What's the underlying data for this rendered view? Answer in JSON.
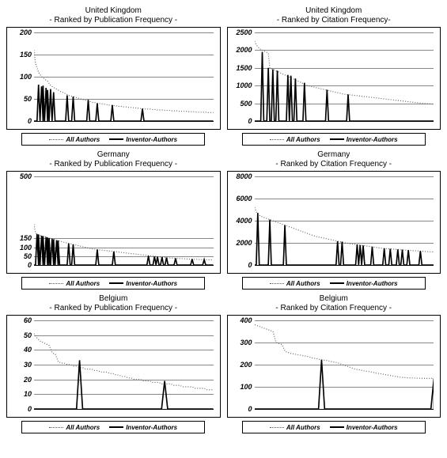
{
  "legend": {
    "a": "All Authors",
    "b": "Inventor-Authors"
  },
  "style": {
    "dotted_color": "#666666",
    "dotted_dash": "1,2",
    "dotted_width": 1.2,
    "solid_color": "#000000",
    "solid_width": 1.6,
    "grid_color": "#888888",
    "axis_color": "#000000",
    "title_fontsize": 10,
    "tick_fontsize": 9,
    "legend_fontsize": 8,
    "background": "#ffffff"
  },
  "panels": [
    {
      "country": "United Kingdom",
      "subtitle": "- Ranked by Publication Frequency -",
      "ymax": 200,
      "yticks": [
        0,
        50,
        100,
        150,
        200
      ],
      "n": 120,
      "all": [
        160,
        130,
        120,
        110,
        105,
        100,
        98,
        95,
        92,
        90,
        85,
        80,
        78,
        76,
        74,
        72,
        70,
        68,
        66,
        65,
        63,
        62,
        60,
        58,
        57,
        56,
        55,
        54,
        53,
        52,
        51,
        50,
        49,
        48,
        47,
        46,
        45,
        44,
        43,
        42,
        42,
        41,
        40,
        40,
        39,
        39,
        38,
        38,
        37,
        37,
        36,
        36,
        35,
        35,
        34,
        34,
        33,
        33,
        33,
        32,
        32,
        32,
        31,
        31,
        31,
        30,
        30,
        30,
        29,
        29,
        29,
        28,
        28,
        28,
        27,
        27,
        27,
        27,
        26,
        26,
        26,
        26,
        25,
        25,
        25,
        25,
        24,
        24,
        24,
        24,
        24,
        23,
        23,
        23,
        23,
        23,
        22,
        22,
        22,
        22,
        22,
        22,
        21,
        21,
        21,
        21,
        21,
        21,
        20,
        20,
        20,
        20,
        20,
        20,
        20,
        19,
        19,
        19,
        19,
        19
      ],
      "spikes": [
        [
          3,
          82
        ],
        [
          5,
          78
        ],
        [
          6,
          80
        ],
        [
          8,
          75
        ],
        [
          9,
          70
        ],
        [
          11,
          72
        ],
        [
          13,
          65
        ],
        [
          22,
          58
        ],
        [
          26,
          55
        ],
        [
          36,
          48
        ],
        [
          42,
          40
        ],
        [
          52,
          36
        ],
        [
          72,
          28
        ]
      ]
    },
    {
      "country": "United Kingdom",
      "subtitle": "- Ranked by Citation Frequency-",
      "ymax": 2500,
      "yticks": [
        0,
        500,
        1000,
        1500,
        2000,
        2500
      ],
      "n": 120,
      "all": [
        2250,
        2150,
        2100,
        2050,
        2020,
        2000,
        1980,
        1960,
        1940,
        1920,
        1500,
        1480,
        1460,
        1440,
        1420,
        1400,
        1380,
        1360,
        1340,
        1320,
        1300,
        1280,
        1260,
        1240,
        1220,
        1200,
        1180,
        1160,
        1140,
        1120,
        1100,
        1080,
        1060,
        1040,
        1020,
        1000,
        990,
        980,
        970,
        960,
        950,
        940,
        930,
        920,
        910,
        900,
        890,
        880,
        870,
        860,
        850,
        840,
        830,
        820,
        810,
        800,
        790,
        780,
        770,
        760,
        755,
        750,
        745,
        740,
        735,
        730,
        725,
        720,
        715,
        710,
        705,
        700,
        695,
        690,
        685,
        680,
        675,
        670,
        665,
        660,
        655,
        650,
        645,
        640,
        635,
        630,
        625,
        620,
        615,
        610,
        605,
        600,
        595,
        590,
        585,
        580,
        575,
        570,
        565,
        560,
        555,
        550,
        545,
        540,
        535,
        530,
        525,
        520,
        515,
        510,
        505,
        500,
        498,
        495,
        490,
        488,
        485,
        482,
        480,
        478,
        475
      ],
      "spikes": [
        [
          5,
          1950
        ],
        [
          9,
          1500
        ],
        [
          12,
          1460
        ],
        [
          15,
          1420
        ],
        [
          22,
          1300
        ],
        [
          24,
          1280
        ],
        [
          27,
          1200
        ],
        [
          33,
          1080
        ],
        [
          48,
          880
        ],
        [
          62,
          750
        ]
      ]
    },
    {
      "country": "Germany",
      "subtitle": "- Ranked by Publication Frequency -",
      "ymax": 500,
      "yticks": [
        0,
        50,
        100,
        150,
        500
      ],
      "n": 120,
      "all": [
        230,
        180,
        175,
        170,
        168,
        165,
        162,
        160,
        158,
        155,
        152,
        150,
        148,
        145,
        143,
        140,
        138,
        135,
        133,
        130,
        128,
        126,
        124,
        122,
        120,
        118,
        116,
        114,
        112,
        110,
        108,
        106,
        104,
        102,
        100,
        98,
        96,
        94,
        92,
        90,
        89,
        88,
        87,
        86,
        85,
        84,
        83,
        82,
        81,
        80,
        79,
        78,
        77,
        76,
        75,
        74,
        73,
        72,
        71,
        70,
        69,
        68,
        67,
        66,
        65,
        64,
        63,
        62,
        61,
        60,
        59,
        58,
        57,
        56,
        55,
        54,
        53,
        52,
        51,
        50,
        49,
        48,
        47,
        46,
        45,
        44,
        43,
        42,
        41,
        40,
        40,
        39,
        39,
        38,
        38,
        37,
        37,
        36,
        36,
        35,
        35,
        34,
        34,
        33,
        33,
        33,
        32,
        32,
        32,
        31,
        31,
        31,
        30,
        30,
        30,
        30,
        29,
        29,
        29,
        29
      ],
      "spikes": [
        [
          2,
          175
        ],
        [
          3,
          172
        ],
        [
          5,
          165
        ],
        [
          6,
          163
        ],
        [
          8,
          158
        ],
        [
          9,
          155
        ],
        [
          10,
          152
        ],
        [
          12,
          148
        ],
        [
          13,
          145
        ],
        [
          15,
          140
        ],
        [
          16,
          138
        ],
        [
          23,
          122
        ],
        [
          26,
          116
        ],
        [
          42,
          87
        ],
        [
          53,
          76
        ],
        [
          76,
          52
        ],
        [
          80,
          48
        ],
        [
          82,
          46
        ],
        [
          85,
          44
        ],
        [
          88,
          42
        ],
        [
          94,
          38
        ],
        [
          105,
          33
        ],
        [
          113,
          30
        ]
      ]
    },
    {
      "country": "Germany",
      "subtitle": "- Ranked by Citation Frequency -",
      "ymax": 8000,
      "yticks": [
        0,
        2000,
        4000,
        6000,
        8000
      ],
      "n": 120,
      "all": [
        5200,
        4800,
        4600,
        4500,
        4400,
        4350,
        4300,
        4250,
        4200,
        4150,
        4100,
        4050,
        4000,
        3950,
        3900,
        3850,
        3800,
        3750,
        3700,
        3650,
        3600,
        3550,
        3500,
        3450,
        3400,
        3350,
        3300,
        3250,
        3200,
        3150,
        3100,
        3050,
        3000,
        2950,
        2900,
        2850,
        2800,
        2750,
        2700,
        2650,
        2600,
        2570,
        2540,
        2510,
        2480,
        2450,
        2420,
        2390,
        2360,
        2330,
        2300,
        2270,
        2240,
        2210,
        2180,
        2150,
        2120,
        2090,
        2060,
        2030,
        2000,
        1980,
        1960,
        1940,
        1920,
        1900,
        1880,
        1860,
        1840,
        1820,
        1800,
        1780,
        1760,
        1740,
        1720,
        1700,
        1680,
        1660,
        1640,
        1620,
        1600,
        1580,
        1560,
        1540,
        1520,
        1500,
        1490,
        1480,
        1470,
        1460,
        1450,
        1440,
        1430,
        1420,
        1410,
        1400,
        1390,
        1380,
        1370,
        1360,
        1350,
        1340,
        1330,
        1320,
        1310,
        1300,
        1290,
        1280,
        1270,
        1260,
        1250,
        1240,
        1230,
        1220,
        1210,
        1200,
        1195,
        1190,
        1185,
        1180
      ],
      "spikes": [
        [
          2,
          4700
        ],
        [
          10,
          4100
        ],
        [
          20,
          3600
        ],
        [
          55,
          2150
        ],
        [
          58,
          2100
        ],
        [
          68,
          1850
        ],
        [
          70,
          1800
        ],
        [
          72,
          1760
        ],
        [
          78,
          1660
        ],
        [
          86,
          1500
        ],
        [
          90,
          1460
        ],
        [
          95,
          1410
        ],
        [
          98,
          1380
        ],
        [
          102,
          1340
        ],
        [
          110,
          1260
        ]
      ]
    },
    {
      "country": "Belgium",
      "subtitle": "- Ranked by Publication Frequency -",
      "ymax": 60,
      "yticks": [
        0,
        10,
        20,
        30,
        40,
        50,
        60
      ],
      "n": 60,
      "all": [
        51,
        48,
        46,
        45,
        44,
        43,
        38,
        37,
        32,
        31,
        31,
        30,
        30,
        29,
        29,
        28,
        28,
        27,
        27,
        27,
        26,
        26,
        25,
        25,
        25,
        24,
        24,
        23,
        23,
        22,
        22,
        21,
        21,
        20,
        20,
        20,
        19,
        19,
        19,
        18,
        18,
        18,
        17,
        17,
        17,
        17,
        16,
        16,
        16,
        15,
        15,
        15,
        15,
        14,
        14,
        14,
        14,
        13,
        13,
        13
      ],
      "spikes": [
        [
          15,
          33
        ],
        [
          43,
          19
        ]
      ]
    },
    {
      "country": "Belgium",
      "subtitle": "- Ranked by Citation Frequency -",
      "ymax": 400,
      "yticks": [
        0,
        100,
        200,
        300,
        400
      ],
      "n": 60,
      "all": [
        380,
        375,
        370,
        365,
        360,
        355,
        350,
        300,
        295,
        290,
        260,
        255,
        250,
        248,
        245,
        243,
        240,
        238,
        235,
        230,
        228,
        225,
        222,
        220,
        218,
        215,
        212,
        210,
        205,
        200,
        195,
        190,
        185,
        180,
        178,
        175,
        172,
        170,
        168,
        165,
        162,
        160,
        158,
        155,
        153,
        150,
        148,
        145,
        143,
        142,
        141,
        140,
        140,
        139,
        139,
        138,
        138,
        138,
        138,
        138
      ],
      "spikes": [
        [
          22,
          222
        ],
        [
          59,
          138
        ]
      ]
    }
  ]
}
